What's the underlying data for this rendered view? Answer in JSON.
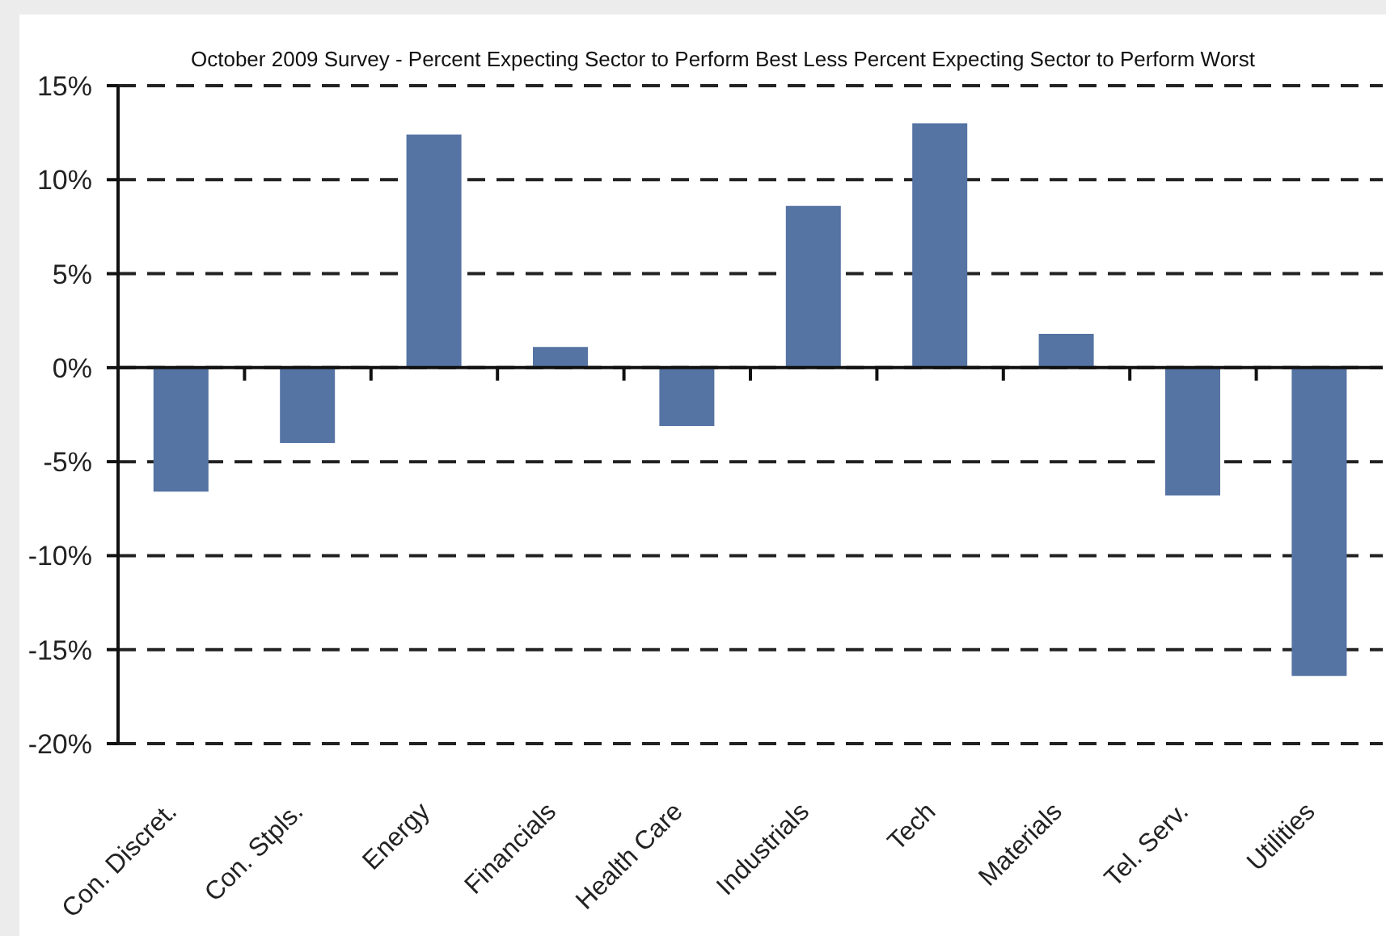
{
  "chart_data": {
    "type": "bar",
    "title": "October 2009 Survey - Percent Expecting Sector to Perform Best Less Percent Expecting Sector to Perform Worst",
    "categories": [
      "Con. Discret.",
      "Con. Stpls.",
      "Energy",
      "Financials",
      "Health Care",
      "Industrials",
      "Tech",
      "Materials",
      "Tel. Serv.",
      "Utilities"
    ],
    "values": [
      -6.6,
      -4.0,
      12.4,
      1.1,
      -3.1,
      8.6,
      13.0,
      1.8,
      -6.8,
      -16.4
    ],
    "color": "#5573a3",
    "ylim": [
      -20,
      15
    ],
    "yticks": [
      {
        "value": -20,
        "label": "-20%"
      },
      {
        "value": -15,
        "label": "-15%"
      },
      {
        "value": -10,
        "label": "-10%"
      },
      {
        "value": -5,
        "label": "-5%"
      },
      {
        "value": 0,
        "label": "0%"
      },
      {
        "value": 5,
        "label": "5%"
      },
      {
        "value": 10,
        "label": "10%"
      },
      {
        "value": 15,
        "label": "15%"
      }
    ],
    "grid": "y"
  }
}
